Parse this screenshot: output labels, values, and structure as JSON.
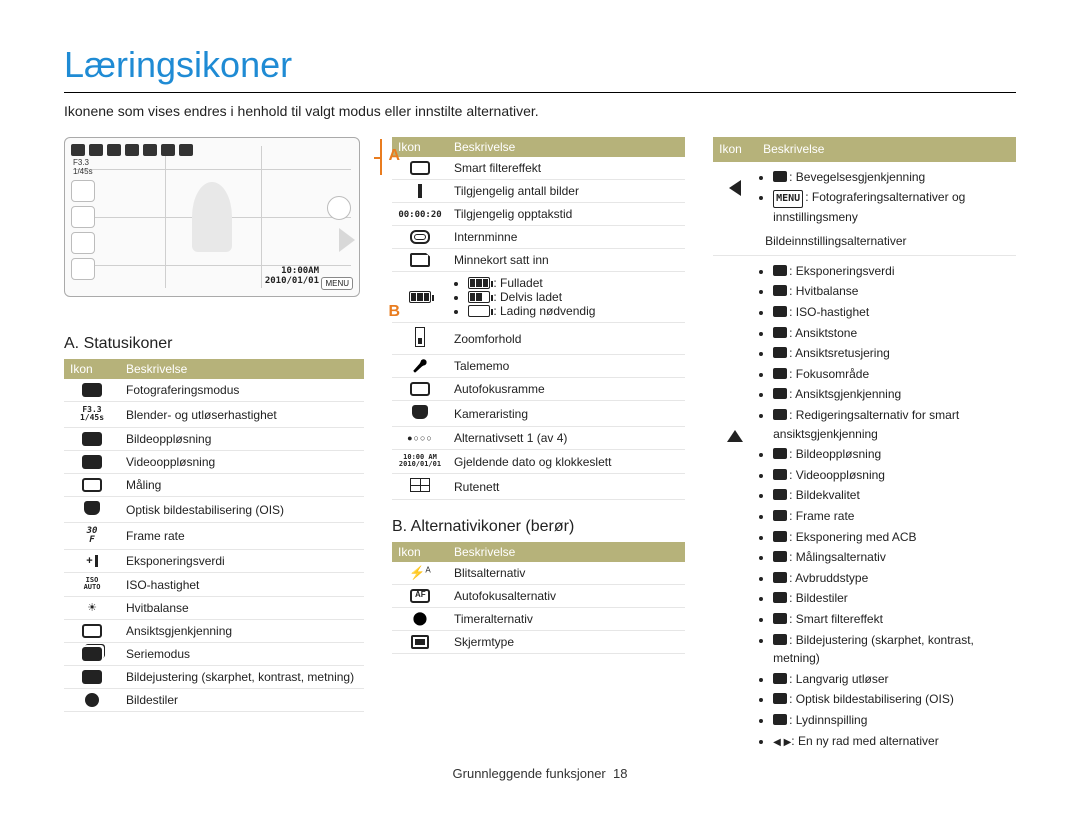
{
  "page": {
    "title": "Læringsikoner",
    "intro": "Ikonene som vises endres i henhold til valgt modus eller innstilte alternativer.",
    "footer_label": "Grunnleggende funksjoner",
    "footer_page": "18"
  },
  "screen": {
    "f_number": "F3.3",
    "shutter": "1/45s",
    "time": "10:00AM",
    "date": "2010/01/01",
    "menu": "MENU",
    "label_a": "A",
    "label_b": "B"
  },
  "colors": {
    "heading": "#1f8bd4",
    "accent": "#e97c1f",
    "table_header_bg": "#b6b27a",
    "table_header_fg": "#ffffff",
    "row_border": "#e6e6e6"
  },
  "sectionA": {
    "title": "A. Statusikoner",
    "header_icon": "Ikon",
    "header_desc": "Beskrivelse",
    "rows": [
      {
        "icon": "camera-box",
        "desc": "Fotograferingsmodus"
      },
      {
        "icon": "f-text",
        "text": "F3.3 1/45s",
        "desc": "Blender- og utløserhastighet"
      },
      {
        "icon": "res-box",
        "desc": "Bildeoppløsning"
      },
      {
        "icon": "vres-box",
        "desc": "Videooppløsning"
      },
      {
        "icon": "metering",
        "desc": "Måling"
      },
      {
        "icon": "ois-hand",
        "desc": "Optisk bildestabilisering (OIS)"
      },
      {
        "icon": "fps-text",
        "text": "30 F",
        "desc": "Frame rate"
      },
      {
        "icon": "plus-i",
        "desc": "Eksponeringsverdi"
      },
      {
        "icon": "iso-text",
        "text": "ISO AUTO",
        "desc": "ISO-hastighet"
      },
      {
        "icon": "wb-sun",
        "desc": "Hvitbalanse"
      },
      {
        "icon": "face-box",
        "desc": "Ansiktsgjenkjenning"
      },
      {
        "icon": "series-box",
        "desc": "Seriemodus"
      },
      {
        "icon": "adjust-box",
        "desc": "Bildejustering (skarphet, kontrast, metning)"
      },
      {
        "icon": "palette",
        "desc": "Bildestiler"
      }
    ]
  },
  "middleTop": {
    "header_icon": "Ikon",
    "header_desc": "Beskrivelse",
    "rows": [
      {
        "icon": "smart-filter",
        "desc": "Smart filtereffekt"
      },
      {
        "icon": "count-bar",
        "desc": "Tilgjengelig antall bilder"
      },
      {
        "icon": "rec-time",
        "text": "00:00:20",
        "desc": "Tilgjengelig opptakstid"
      },
      {
        "icon": "int-mem",
        "desc": "Internminne"
      },
      {
        "icon": "mem-card",
        "desc": "Minnekort satt inn"
      }
    ],
    "battery": {
      "full": ": Fulladet",
      "partial": ": Delvis ladet",
      "empty": ": Lading nødvendig"
    },
    "rows2": [
      {
        "icon": "zoom",
        "desc": "Zoomforhold"
      },
      {
        "icon": "mic",
        "desc": "Talememo"
      },
      {
        "icon": "af-frame",
        "desc": "Autofokusramme"
      },
      {
        "icon": "shake-hand",
        "desc": "Kamerarisling",
        "desc_real": "Kameraristing"
      },
      {
        "icon": "dots4",
        "desc": "Alternativsett 1 (av 4)"
      },
      {
        "icon": "datetime",
        "text": "10:00 AM 2010/01/01",
        "desc": "Gjeldende dato og klokkeslett"
      },
      {
        "icon": "grid",
        "desc": "Rutenett"
      }
    ]
  },
  "sectionB": {
    "title": "B. Alternativikoner (berør)",
    "header_icon": "Ikon",
    "header_desc": "Beskrivelse",
    "rows": [
      {
        "icon": "flash",
        "desc": "Blitsalternativ"
      },
      {
        "icon": "af-box",
        "desc": "Autofokusalternativ"
      },
      {
        "icon": "timer",
        "desc": "Timeralternativ"
      },
      {
        "icon": "screen",
        "desc": "Skjermtype"
      }
    ]
  },
  "right": {
    "header_icon": "Ikon",
    "header_desc": "Beskrivelse",
    "arrow_left": {
      "items": [
        {
          "pre": "ico",
          "text": ": Bevegelsesgjenkjenning"
        },
        {
          "pre": "menu",
          "text": ": Fotograferingsalternativer og innstillingsmeny"
        }
      ]
    },
    "section_label": "Bildeinnstillingsalternativer",
    "arrow_up_items": [
      ": Eksponeringsverdi",
      ": Hvitbalanse",
      ": ISO-hastighet",
      ": Ansiktstone",
      ": Ansiktsretusjering",
      ": Fokusområde",
      ": Ansiktsgjenkjenning",
      ": Redigeringsalternativ for smart ansiktsgjenkjenning",
      ": Bildeoppløsning",
      ": Videooppløsning",
      ": Bildekvalitet",
      ": Frame rate",
      ": Eksponering med ACB",
      ": Målingsalternativ",
      ": Avbruddstype",
      ": Bildestiler",
      ": Smart filtereffekt",
      ": Bildejustering (skarphet, kontrast, metning)",
      ": Langvarig utløser",
      ": Optisk bildestabilisering (OIS)",
      ": Lydinnspilling",
      ": En ny rad med alternativer"
    ],
    "last_arrow_lr": true
  }
}
